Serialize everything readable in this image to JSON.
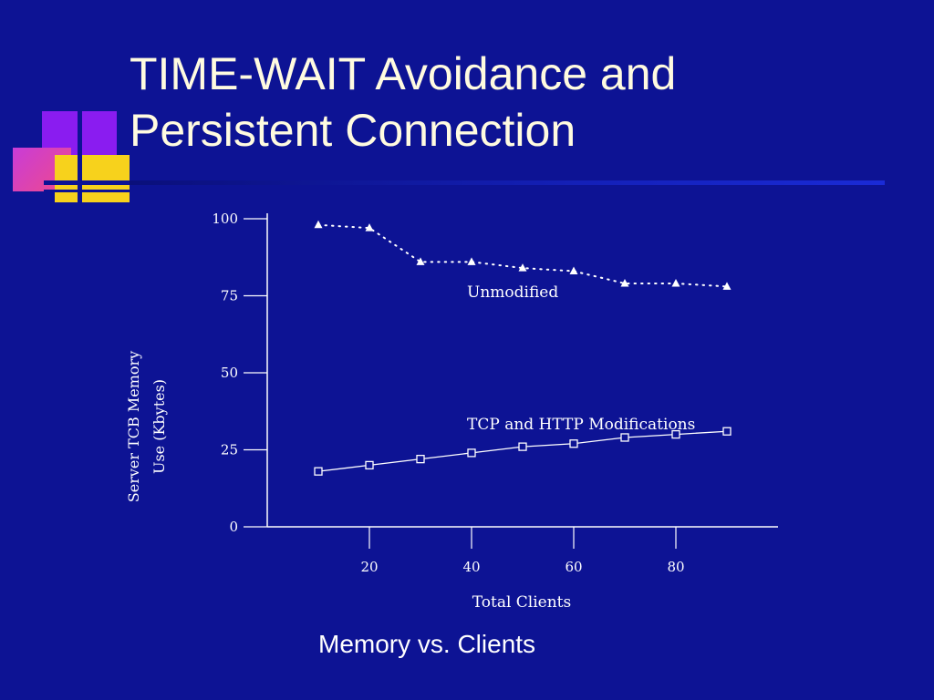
{
  "slide": {
    "title_line1": "TIME-WAIT Avoidance and",
    "title_line2": "Persistent Connection",
    "caption": "Memory vs. Clients",
    "colors": {
      "background": "#0d1394",
      "title": "#fffbe0",
      "logo_purple": "#8a1cf0",
      "logo_magenta": "#e83cb0",
      "logo_yellow": "#f7d21c"
    }
  },
  "chart_data": {
    "type": "line",
    "title": "",
    "xlabel": "Total Clients",
    "ylabel_line1": "Server TCB Memory",
    "ylabel_line2": "Use (Kbytes)",
    "xlim": [
      0,
      100
    ],
    "ylim": [
      0,
      100
    ],
    "x_ticks": [
      20,
      40,
      60,
      80
    ],
    "y_ticks": [
      0,
      25,
      50,
      75,
      100
    ],
    "x_tick_labels": [
      "20",
      "40",
      "60",
      "80"
    ],
    "y_tick_labels": [
      "0",
      "25",
      "50",
      "75",
      "100"
    ],
    "grid": false,
    "series": [
      {
        "name": "Unmodified",
        "style": "dotted",
        "marker": "triangle",
        "x": [
          10,
          20,
          30,
          40,
          50,
          60,
          70,
          80,
          90
        ],
        "y": [
          98,
          97,
          86,
          86,
          84,
          83,
          79,
          79,
          78
        ]
      },
      {
        "name": "TCP and HTTP Modifications",
        "style": "solid",
        "marker": "square",
        "x": [
          10,
          20,
          30,
          40,
          50,
          60,
          70,
          80,
          90
        ],
        "y": [
          18,
          20,
          22,
          24,
          26,
          27,
          29,
          30,
          31
        ]
      }
    ]
  }
}
